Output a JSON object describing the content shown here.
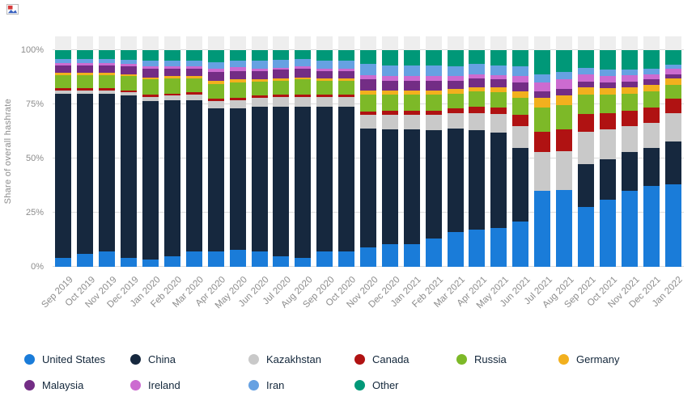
{
  "logo": {
    "name": "broken-image-icon"
  },
  "chart_data": {
    "type": "bar",
    "stacked": true,
    "title": "",
    "ylabel": "Share of overall hashrate",
    "ylim": [
      0,
      100
    ],
    "grid": true,
    "legend_position": "bottom",
    "y_ticks": [
      {
        "label": "0%",
        "value": 0
      },
      {
        "label": "25%",
        "value": 25
      },
      {
        "label": "50%",
        "value": 50
      },
      {
        "label": "75%",
        "value": 75
      },
      {
        "label": "100%",
        "value": 100
      }
    ],
    "categories": [
      "Sep 2019",
      "Oct 2019",
      "Nov 2019",
      "Dec 2019",
      "Jan 2020",
      "Feb 2020",
      "Mar 2020",
      "Apr 2020",
      "May 2020",
      "Jun 2020",
      "Jul 2020",
      "Aug 2020",
      "Sep 2020",
      "Oct 2020",
      "Nov 2020",
      "Dec 2020",
      "Jan 2021",
      "Feb 2021",
      "Mar 2021",
      "Apr 2021",
      "May 2021",
      "Jun 2021",
      "Jul 2021",
      "Aug 2021",
      "Sep 2021",
      "Oct 2021",
      "Nov 2021",
      "Dec 2021",
      "Jan 2022"
    ],
    "series": [
      {
        "name": "United States",
        "color": "#1a7cd9",
        "values": [
          4,
          6,
          7,
          4,
          3.5,
          5,
          7,
          7,
          8,
          7,
          5,
          4,
          7,
          7,
          9,
          10.5,
          10.5,
          13,
          16,
          17,
          18,
          21,
          35,
          35.5,
          27.5,
          31,
          35,
          37.5,
          38
        ]
      },
      {
        "name": "China",
        "color": "#16283e",
        "values": [
          76,
          74,
          73,
          75,
          73,
          72,
          70,
          66,
          65,
          67,
          69,
          70,
          67,
          67,
          55,
          53,
          53,
          50,
          48,
          46,
          44,
          34,
          0,
          0,
          20,
          18.5,
          18,
          17.5,
          20
        ]
      },
      {
        "name": "Kazakhstan",
        "color": "#c9c9c9",
        "values": [
          1.5,
          1.5,
          1.5,
          1.5,
          2,
          2,
          2.5,
          3.5,
          4,
          4,
          4.5,
          4.5,
          4.5,
          4.5,
          6,
          6.5,
          6.5,
          7,
          7,
          8,
          8.5,
          10,
          18,
          18,
          15,
          14,
          12,
          11.5,
          13
        ]
      },
      {
        "name": "Canada",
        "color": "#b01212",
        "values": [
          1,
          1,
          1,
          1,
          1,
          1,
          1,
          1,
          1,
          1,
          1,
          1,
          1,
          1,
          1.5,
          2,
          2,
          2,
          2,
          3,
          3,
          5,
          9.5,
          10,
          8,
          7.5,
          7,
          7,
          6.5
        ]
      },
      {
        "name": "Russia",
        "color": "#7db928",
        "values": [
          6,
          6,
          6,
          6.5,
          7,
          7,
          6.5,
          7,
          7,
          6.5,
          6.5,
          7,
          6.5,
          6.5,
          8,
          7.5,
          7.5,
          7.5,
          7,
          7,
          7,
          8,
          11,
          11,
          9,
          8.5,
          8,
          7.5,
          6.5
        ]
      },
      {
        "name": "Germany",
        "color": "#f2b01e",
        "values": [
          1,
          1,
          1,
          1,
          1,
          1,
          1,
          1.5,
          1.5,
          1,
          1,
          1,
          1,
          1,
          2,
          2,
          2,
          2,
          2,
          2,
          2.5,
          3,
          4.5,
          4.5,
          3.5,
          3,
          3,
          3,
          3
        ]
      },
      {
        "name": "Malaysia",
        "color": "#732d85",
        "values": [
          3.5,
          3.5,
          3.5,
          3.5,
          4,
          3.5,
          3.5,
          4,
          4,
          4,
          4,
          4,
          3.5,
          3.5,
          5,
          4.5,
          4.5,
          4.5,
          4,
          4,
          3.5,
          4,
          3,
          3,
          2.5,
          2.5,
          2.5,
          2.5,
          2
        ]
      },
      {
        "name": "Ireland",
        "color": "#cc6bd0",
        "values": [
          1,
          1,
          1,
          1,
          1,
          1,
          1,
          1.5,
          1.5,
          1,
          1,
          1,
          1,
          1,
          2,
          2,
          2,
          2,
          2,
          2,
          2,
          3,
          4,
          4.5,
          3.5,
          3,
          3,
          2.5,
          2.5
        ]
      },
      {
        "name": "Iran",
        "color": "#66a1e2",
        "values": [
          2,
          2,
          2,
          2,
          2.5,
          2.5,
          2.5,
          3,
          3,
          3.5,
          3.5,
          3.5,
          3.5,
          3.5,
          5,
          5,
          5,
          5,
          4.5,
          4.5,
          4.5,
          4.5,
          4,
          3.5,
          3,
          3,
          2.5,
          2.5,
          2
        ]
      },
      {
        "name": "Other",
        "color": "#009878",
        "values": [
          4,
          4,
          4,
          4.5,
          5,
          5,
          5,
          5.5,
          5,
          5,
          4.5,
          4,
          5,
          5,
          6.5,
          7,
          7,
          7,
          7.5,
          6.5,
          7,
          7.5,
          11,
          10,
          8,
          9,
          9,
          8.5,
          6.5
        ]
      }
    ]
  }
}
